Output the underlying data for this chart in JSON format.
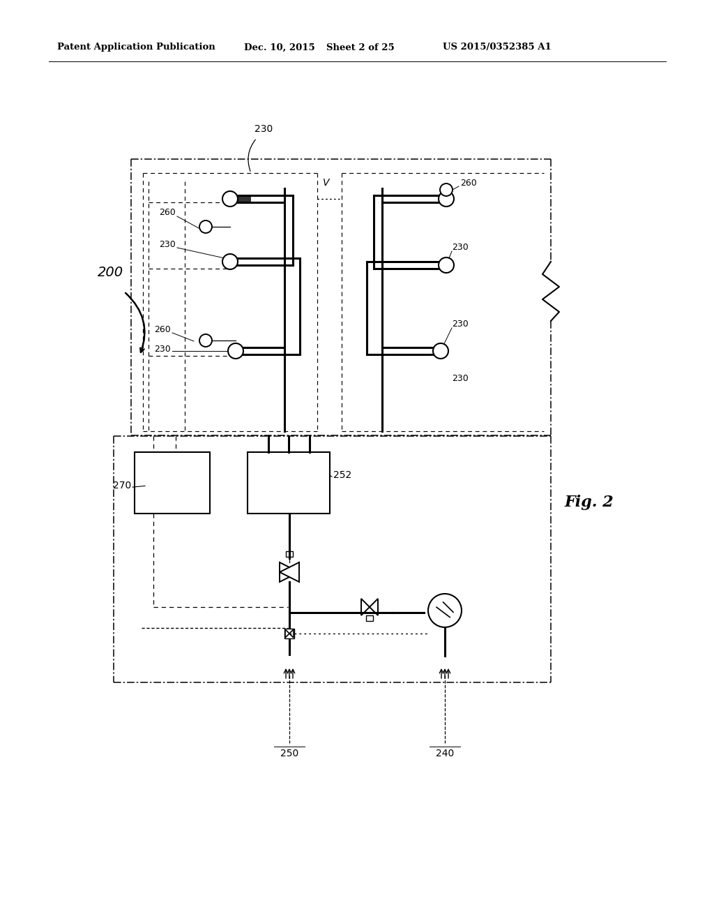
{
  "bg_color": "#ffffff",
  "header_left": "Patent Application Publication",
  "header_date": "Dec. 10, 2015",
  "header_sheet": "Sheet 2 of 25",
  "header_patent": "US 2015/0352385 A1",
  "fig_label": "Fig. 2"
}
